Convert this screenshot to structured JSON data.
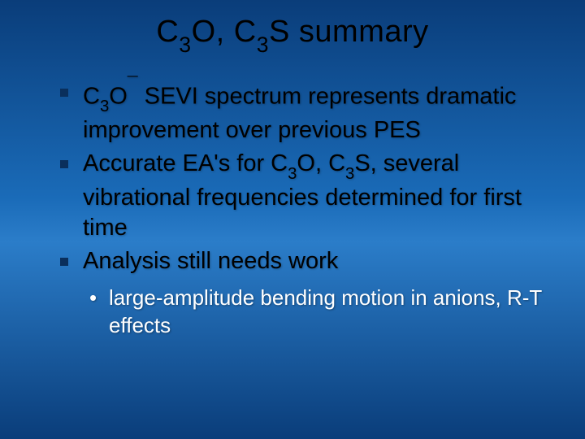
{
  "background": {
    "gradient_stops": [
      "#0a3d7a",
      "#1a6bb8",
      "#2b7dc9",
      "#0a3d7a"
    ]
  },
  "title": {
    "prefix1": "C",
    "sub1": "3",
    "mid1": "O, C",
    "sub2": "3",
    "suffix": "S summary",
    "color": "#000000",
    "fontsize_pt": 38
  },
  "bullets": [
    {
      "segments": [
        {
          "t": "C",
          "kind": "normal"
        },
        {
          "t": "3",
          "kind": "sub"
        },
        {
          "t": "O",
          "kind": "normal"
        },
        {
          "t": "¯",
          "kind": "sup"
        },
        {
          "t": " SEVI spectrum represents dramatic improvement over previous PES",
          "kind": "normal"
        }
      ]
    },
    {
      "segments": [
        {
          "t": "Accurate EA's for C",
          "kind": "normal"
        },
        {
          "t": "3",
          "kind": "sub"
        },
        {
          "t": "O, C",
          "kind": "normal"
        },
        {
          "t": "3",
          "kind": "sub"
        },
        {
          "t": "S, several vibrational frequencies determined for first time",
          "kind": "normal"
        }
      ]
    },
    {
      "segments": [
        {
          "t": "Analysis still needs work",
          "kind": "normal"
        }
      ]
    }
  ],
  "subbullets": [
    {
      "text": "large-amplitude bending motion in anions, R-T effects"
    }
  ],
  "styles": {
    "bullet_color": "#000000",
    "bullet_marker_color": "#0a2f5c",
    "bullet_fontsize_pt": 29,
    "subbullet_color": "#ffffff",
    "subbullet_fontsize_pt": 26,
    "font_family": "Verdana"
  }
}
